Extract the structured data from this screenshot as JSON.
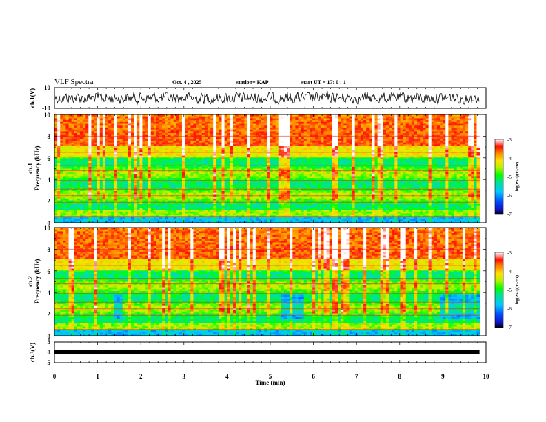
{
  "header": {
    "title": "VLF Spectra",
    "date": "Oct. 4 , 2025",
    "station": "station= KAP",
    "start": "start  UT =   17: 0  : 1"
  },
  "chart_data": {
    "type": "heatmap",
    "x_axis": {
      "label": "Time  (min)",
      "range": [
        0,
        10
      ],
      "ticks": [
        "0",
        "1",
        "2",
        "3",
        "4",
        "5",
        "6",
        "7",
        "8",
        "9",
        "10"
      ],
      "data_end": 9.85
    },
    "panels": [
      {
        "id": "ch1_waveform",
        "type": "line",
        "ylabel": "ch.1(V)",
        "ylim": [
          -10,
          10
        ],
        "yticks": [
          "10",
          "-10"
        ]
      },
      {
        "id": "ch1_spectrogram",
        "type": "heatmap",
        "ylabel_1": "ch.1",
        "ylabel_2": "Frequency  (kHz)",
        "ylim": [
          0,
          10
        ],
        "yticks": [
          "10",
          "8",
          "6",
          "4",
          "2",
          "0"
        ],
        "colorbar": {
          "label": "log(PSD)(V²/Hz)",
          "range": [
            -7,
            -3
          ],
          "ticks": [
            "-3",
            "-4",
            "-5",
            "-6",
            "-7"
          ]
        }
      },
      {
        "id": "ch2_spectrogram",
        "type": "heatmap",
        "ylabel_1": "ch.2",
        "ylabel_2": "Frequency  (kHz)",
        "ylim": [
          0,
          10
        ],
        "yticks": [
          "10",
          "8",
          "6",
          "4",
          "2",
          "0"
        ],
        "colorbar": {
          "label": "log(PSD)(V²/Hz)",
          "range": [
            -7,
            -3
          ],
          "ticks": [
            "-3",
            "-4",
            "-5",
            "-6",
            "-7"
          ]
        }
      },
      {
        "id": "ch3_waveform",
        "type": "line",
        "ylabel": "ch.3(V)",
        "ylim": [
          -5,
          5
        ],
        "yticks": [
          "5",
          "0",
          "-5"
        ],
        "level": 0
      }
    ]
  }
}
